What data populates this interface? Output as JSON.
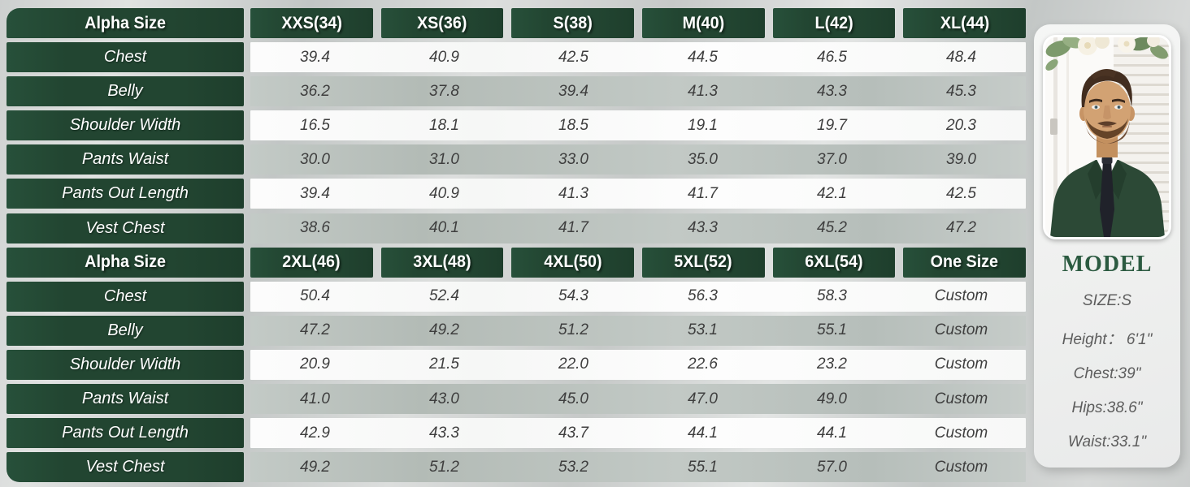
{
  "chart_data": {
    "type": "table",
    "row_header": "Alpha Size",
    "sections": [
      {
        "columns": [
          "XXS(34)",
          "XS(36)",
          "S(38)",
          "M(40)",
          "L(42)",
          "XL(44)"
        ],
        "rows": [
          {
            "label": "Chest",
            "values": [
              "39.4",
              "40.9",
              "42.5",
              "44.5",
              "46.5",
              "48.4"
            ]
          },
          {
            "label": "Belly",
            "values": [
              "36.2",
              "37.8",
              "39.4",
              "41.3",
              "43.3",
              "45.3"
            ]
          },
          {
            "label": "Shoulder Width",
            "values": [
              "16.5",
              "18.1",
              "18.5",
              "19.1",
              "19.7",
              "20.3"
            ]
          },
          {
            "label": "Pants Waist",
            "values": [
              "30.0",
              "31.0",
              "33.0",
              "35.0",
              "37.0",
              "39.0"
            ]
          },
          {
            "label": "Pants Out Length",
            "values": [
              "39.4",
              "40.9",
              "41.3",
              "41.7",
              "42.1",
              "42.5"
            ]
          },
          {
            "label": "Vest Chest",
            "values": [
              "38.6",
              "40.1",
              "41.7",
              "43.3",
              "45.2",
              "47.2"
            ]
          }
        ]
      },
      {
        "columns": [
          "2XL(46)",
          "3XL(48)",
          "4XL(50)",
          "5XL(52)",
          "6XL(54)",
          "One Size"
        ],
        "rows": [
          {
            "label": "Chest",
            "values": [
              "50.4",
              "52.4",
              "54.3",
              "56.3",
              "58.3",
              "Custom"
            ]
          },
          {
            "label": "Belly",
            "values": [
              "47.2",
              "49.2",
              "51.2",
              "53.1",
              "55.1",
              "Custom"
            ]
          },
          {
            "label": "Shoulder Width",
            "values": [
              "20.9",
              "21.5",
              "22.0",
              "22.6",
              "23.2",
              "Custom"
            ]
          },
          {
            "label": "Pants Waist",
            "values": [
              "41.0",
              "43.0",
              "45.0",
              "47.0",
              "49.0",
              "Custom"
            ]
          },
          {
            "label": "Pants Out Length",
            "values": [
              "42.9",
              "43.3",
              "43.7",
              "44.1",
              "44.1",
              "Custom"
            ]
          },
          {
            "label": "Vest Chest",
            "values": [
              "49.2",
              "51.2",
              "53.2",
              "55.1",
              "57.0",
              "Custom"
            ]
          }
        ]
      }
    ]
  },
  "model_panel": {
    "title": "MODEL",
    "size_label": "SIZE:S",
    "stats": [
      "Height： 6'1\"",
      "Chest:39\"",
      "Hips:38.6\"",
      "Waist:33.1\""
    ]
  },
  "colors": {
    "header_green": "#224531",
    "row_gray": "#b9c0bc",
    "row_white": "#fafafa",
    "model_title_green": "#2b5a40",
    "value_text": "#3e3e3e"
  }
}
